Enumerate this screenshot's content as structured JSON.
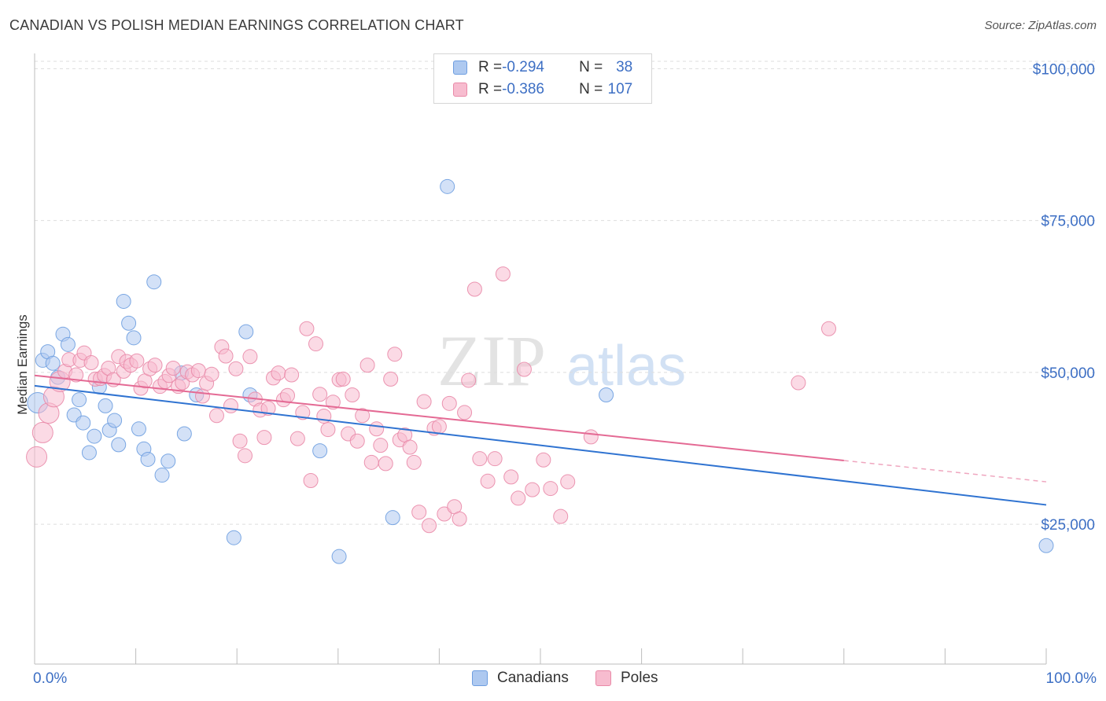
{
  "header": {
    "title": "CANADIAN VS POLISH MEDIAN EARNINGS CORRELATION CHART",
    "source": "Source: ZipAtlas.com"
  },
  "watermark": {
    "zip": "ZIP",
    "atlas": "atlas"
  },
  "legend": {
    "rows": [
      {
        "r_label": "R = ",
        "r_value": "-0.294",
        "n_label": "N = ",
        "n_value": "38",
        "color": "#aec9f0",
        "stroke": "#6e9ee0"
      },
      {
        "r_label": "R = ",
        "r_value": "-0.386",
        "n_label": "N = ",
        "n_value": "107",
        "color": "#f7bccf",
        "stroke": "#e98aa8"
      }
    ]
  },
  "bottom_legend": {
    "canadians": "Canadians",
    "poles": "Poles"
  },
  "colors": {
    "canadian_fill": "#aec9f0",
    "canadian_stroke": "#6e9ee0",
    "canadian_line": "#2f73d1",
    "pole_fill": "#f7bccf",
    "pole_stroke": "#e98aa8",
    "pole_line": "#e46a94",
    "tick_label": "#3d6fc4",
    "grid": "#dddddd"
  },
  "chart_data": {
    "type": "scatter",
    "ylabel": "Median Earnings",
    "xlabel": "",
    "x_tick_labels": [
      "0.0%",
      "100.0%"
    ],
    "y_ticks": [
      25000,
      50000,
      75000,
      100000
    ],
    "y_tick_labels": [
      "$25,000",
      "$50,000",
      "$75,000",
      "$100,000"
    ],
    "xlim": [
      0,
      100
    ],
    "ylim": [
      2000,
      102500
    ],
    "grid": true,
    "legend_position": "top-center",
    "series": [
      {
        "name": "Canadians",
        "r": -0.294,
        "n": 38,
        "trend": {
          "x": [
            0,
            100
          ],
          "y": [
            47800,
            28200
          ],
          "dashed_x": null
        },
        "points": [
          [
            0.3,
            45000,
            "big"
          ],
          [
            0.8,
            52000
          ],
          [
            1.3,
            53400
          ],
          [
            1.8,
            51500
          ],
          [
            2.3,
            49200
          ],
          [
            2.8,
            56300
          ],
          [
            3.3,
            54600
          ],
          [
            3.9,
            43000
          ],
          [
            4.4,
            45500
          ],
          [
            4.8,
            41700
          ],
          [
            5.4,
            36800
          ],
          [
            5.9,
            39500
          ],
          [
            6.4,
            47600
          ],
          [
            7.0,
            44500
          ],
          [
            7.4,
            40500
          ],
          [
            7.9,
            42100
          ],
          [
            8.3,
            38100
          ],
          [
            8.8,
            61700
          ],
          [
            9.3,
            58100
          ],
          [
            9.8,
            55700
          ],
          [
            10.3,
            40700
          ],
          [
            10.8,
            37400
          ],
          [
            11.2,
            35700
          ],
          [
            11.8,
            64900
          ],
          [
            12.6,
            33100
          ],
          [
            13.2,
            35400
          ],
          [
            14.5,
            49900
          ],
          [
            14.8,
            39900
          ],
          [
            16.0,
            46300
          ],
          [
            19.7,
            22800
          ],
          [
            20.9,
            56700
          ],
          [
            21.3,
            46300
          ],
          [
            28.2,
            37100
          ],
          [
            30.1,
            19700
          ],
          [
            35.4,
            26100
          ],
          [
            40.8,
            80600
          ],
          [
            56.5,
            46300
          ],
          [
            100.0,
            21500
          ]
        ]
      },
      {
        "name": "Poles",
        "r": -0.386,
        "n": 107,
        "trend": {
          "x": [
            0,
            80
          ],
          "y": [
            49500,
            35500
          ],
          "dashed_x": [
            80,
            100
          ],
          "dashed_y": [
            35500,
            32000
          ]
        },
        "points": [
          [
            0.2,
            36100,
            "big"
          ],
          [
            0.8,
            40100,
            "big"
          ],
          [
            1.4,
            43300,
            "big"
          ],
          [
            1.9,
            46000,
            "big"
          ],
          [
            2.5,
            48500,
            "big"
          ],
          [
            3.0,
            50200
          ],
          [
            3.4,
            52100
          ],
          [
            4.1,
            49600
          ],
          [
            4.5,
            52000
          ],
          [
            4.9,
            53200
          ],
          [
            5.6,
            51600
          ],
          [
            6.0,
            48900
          ],
          [
            6.5,
            49000
          ],
          [
            6.9,
            49500
          ],
          [
            7.3,
            50700
          ],
          [
            7.8,
            48800
          ],
          [
            8.3,
            52600
          ],
          [
            8.8,
            50200
          ],
          [
            9.1,
            51800
          ],
          [
            9.5,
            51200
          ],
          [
            10.1,
            51900
          ],
          [
            10.5,
            47400
          ],
          [
            10.9,
            48600
          ],
          [
            11.4,
            50600
          ],
          [
            11.9,
            51200
          ],
          [
            12.4,
            47700
          ],
          [
            12.9,
            48500
          ],
          [
            13.3,
            49500
          ],
          [
            13.7,
            50700
          ],
          [
            14.2,
            47700
          ],
          [
            14.6,
            48300
          ],
          [
            15.1,
            50100
          ],
          [
            15.6,
            49600
          ],
          [
            16.2,
            50300
          ],
          [
            16.6,
            46100
          ],
          [
            17.0,
            48200
          ],
          [
            17.5,
            49700
          ],
          [
            18.0,
            42900
          ],
          [
            18.5,
            54200
          ],
          [
            18.9,
            52700
          ],
          [
            19.4,
            44500
          ],
          [
            19.9,
            50600
          ],
          [
            20.3,
            38700
          ],
          [
            20.8,
            36300
          ],
          [
            21.3,
            52600
          ],
          [
            21.8,
            45600
          ],
          [
            22.3,
            43800
          ],
          [
            22.7,
            39300
          ],
          [
            23.1,
            44100
          ],
          [
            23.6,
            49100
          ],
          [
            24.1,
            49900
          ],
          [
            24.6,
            45500
          ],
          [
            25.0,
            46200
          ],
          [
            25.4,
            49600
          ],
          [
            26.0,
            39100
          ],
          [
            26.5,
            43400
          ],
          [
            26.9,
            57200
          ],
          [
            27.3,
            32200
          ],
          [
            27.8,
            54700
          ],
          [
            28.2,
            46400
          ],
          [
            28.6,
            42800
          ],
          [
            29.0,
            40600
          ],
          [
            29.5,
            45100
          ],
          [
            30.1,
            48800
          ],
          [
            30.5,
            48900
          ],
          [
            31.0,
            39900
          ],
          [
            31.4,
            46300
          ],
          [
            31.9,
            38700
          ],
          [
            32.4,
            42900
          ],
          [
            32.9,
            51200
          ],
          [
            33.3,
            35200
          ],
          [
            33.8,
            40700
          ],
          [
            34.2,
            38000
          ],
          [
            34.7,
            35000
          ],
          [
            35.2,
            48900
          ],
          [
            35.6,
            53000
          ],
          [
            36.1,
            38900
          ],
          [
            36.6,
            39700
          ],
          [
            37.1,
            37700
          ],
          [
            37.5,
            35200
          ],
          [
            38.0,
            27000
          ],
          [
            38.5,
            45200
          ],
          [
            39.0,
            24800
          ],
          [
            39.5,
            40800
          ],
          [
            40.0,
            41100
          ],
          [
            40.5,
            26700
          ],
          [
            41.0,
            44900
          ],
          [
            41.5,
            27900
          ],
          [
            42.0,
            25900
          ],
          [
            42.5,
            43400
          ],
          [
            42.9,
            48700
          ],
          [
            43.5,
            63700
          ],
          [
            44.0,
            35800
          ],
          [
            44.8,
            32100
          ],
          [
            45.5,
            35800
          ],
          [
            46.3,
            66200
          ],
          [
            47.1,
            32800
          ],
          [
            47.8,
            29300
          ],
          [
            48.4,
            50500
          ],
          [
            49.2,
            30700
          ],
          [
            50.3,
            35600
          ],
          [
            51.0,
            30900
          ],
          [
            52.0,
            26300
          ],
          [
            52.7,
            32000
          ],
          [
            55.0,
            39400
          ],
          [
            75.5,
            48300
          ],
          [
            78.5,
            57200
          ]
        ]
      }
    ]
  }
}
